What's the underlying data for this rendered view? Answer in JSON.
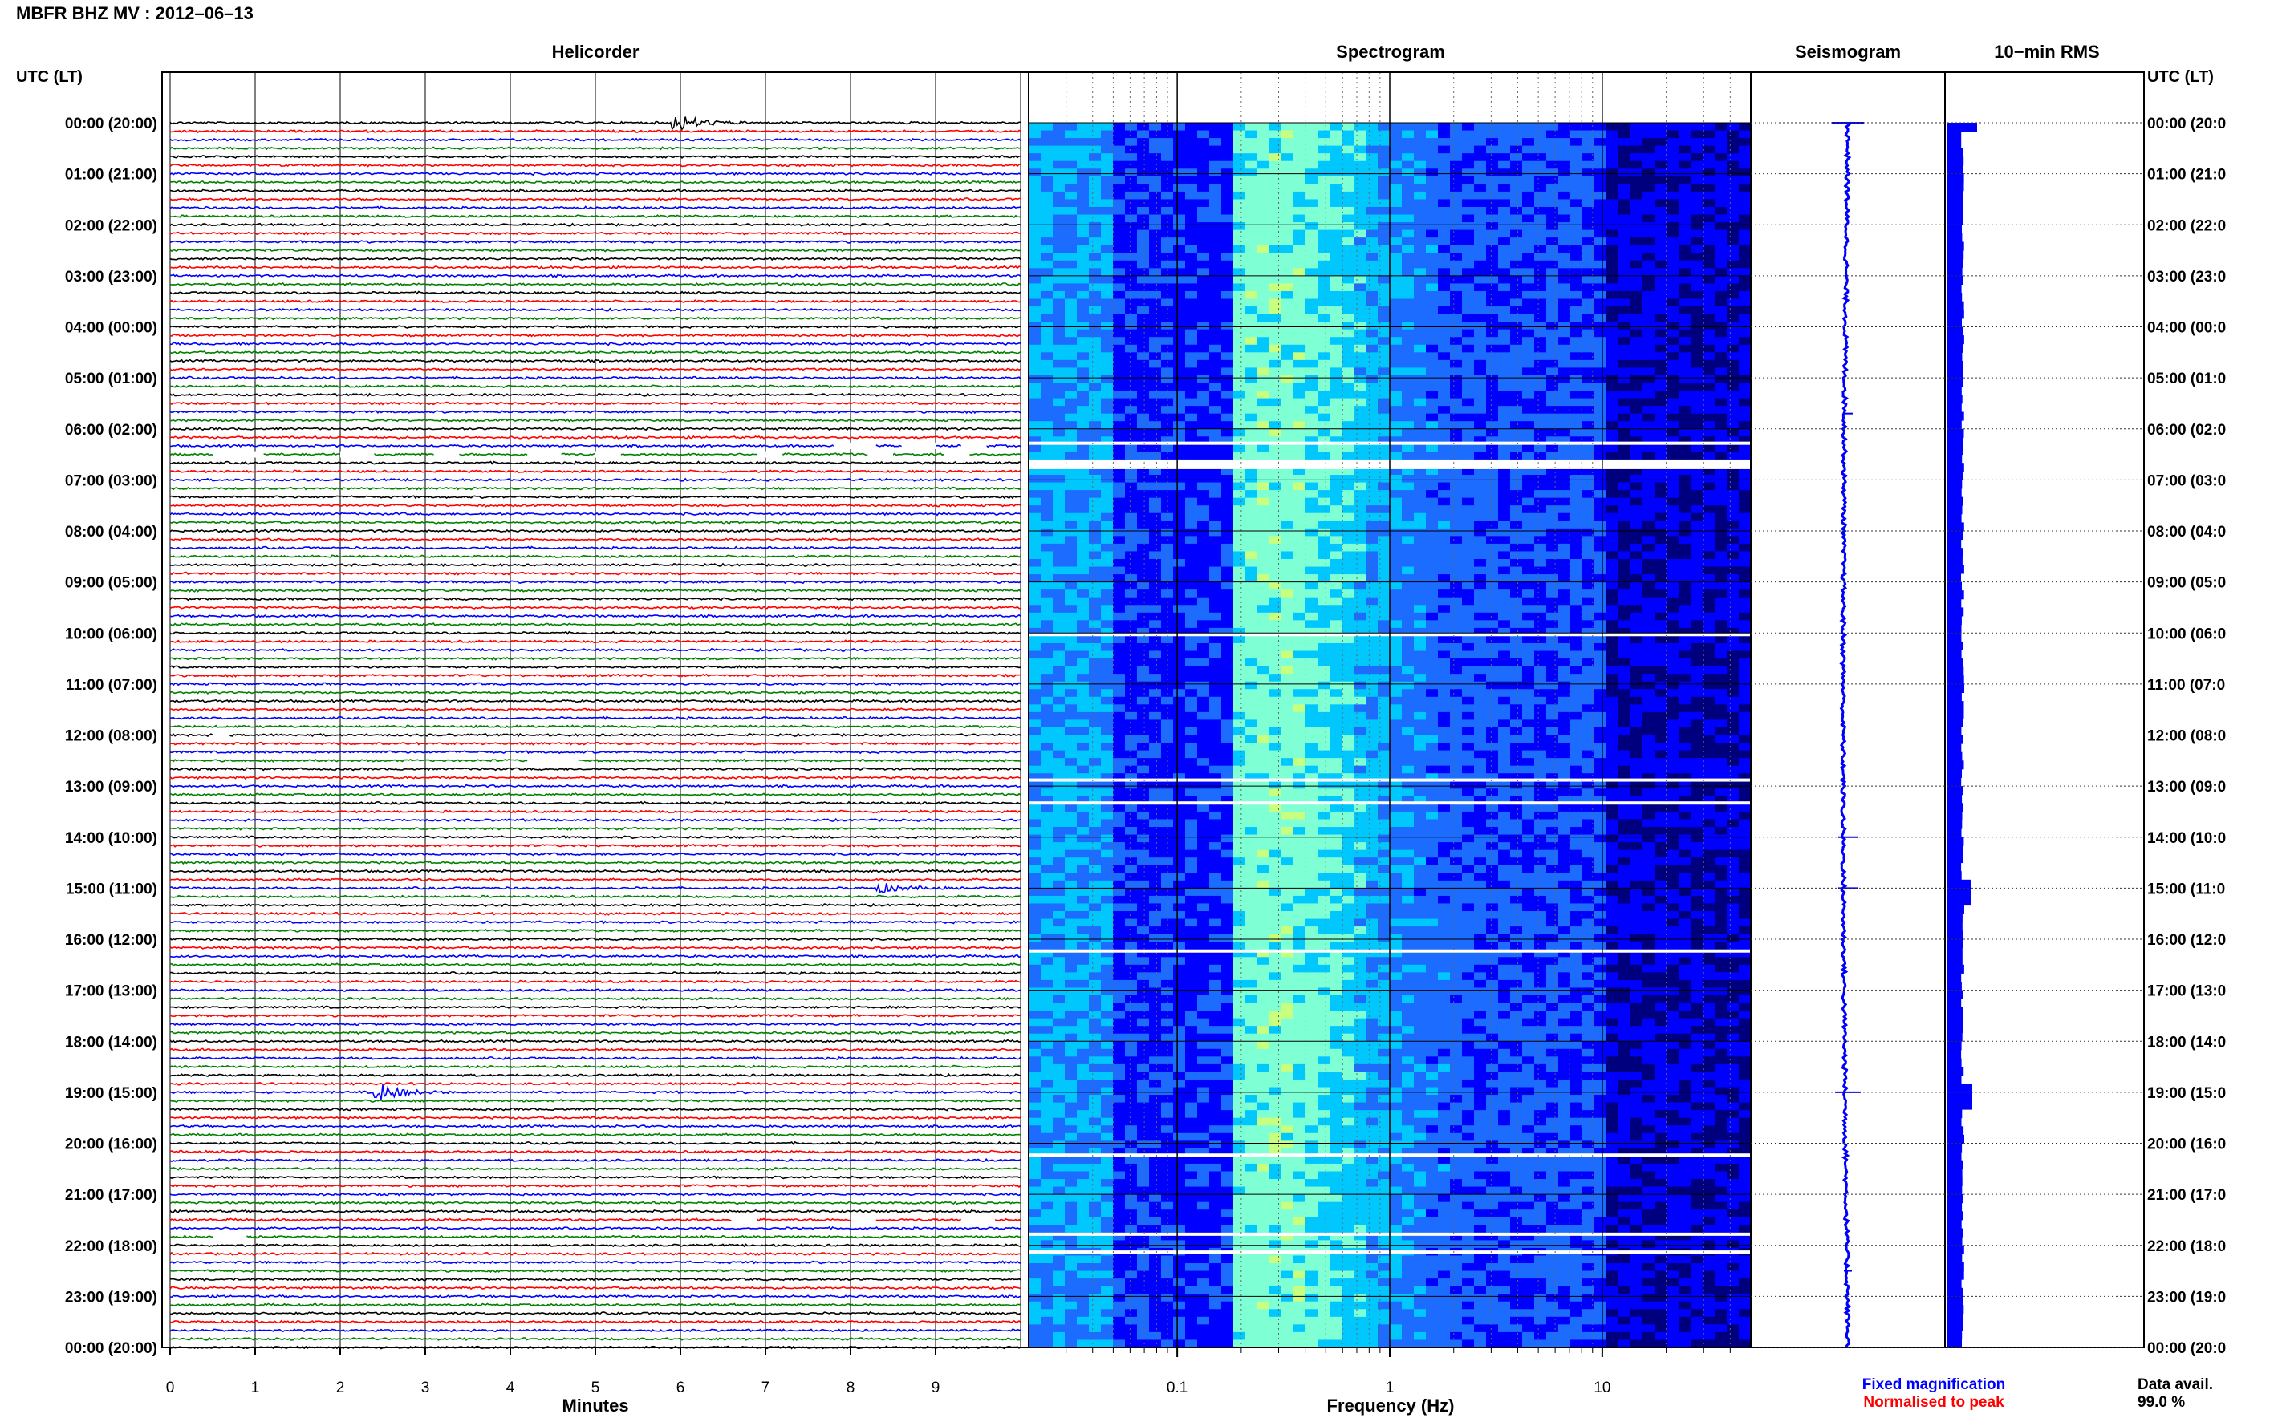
{
  "page": {
    "title": "MBFR BHZ MV : 2012–06–13",
    "utc_header_left": "UTC (LT)",
    "utc_header_right": "UTC (LT)"
  },
  "panels": {
    "helicorder": "Helicorder",
    "spectrogram": "Spectrogram",
    "seismogram": "Seismogram",
    "rms": "10−min RMS"
  },
  "time_labels_left": [
    "00:00 (20:00)",
    "01:00 (21:00)",
    "02:00 (22:00)",
    "03:00 (23:00)",
    "04:00 (00:00)",
    "05:00 (01:00)",
    "06:00 (02:00)",
    "07:00 (03:00)",
    "08:00 (04:00)",
    "09:00 (05:00)",
    "10:00 (06:00)",
    "11:00 (07:00)",
    "12:00 (08:00)",
    "13:00 (09:00)",
    "14:00 (10:00)",
    "15:00 (11:00)",
    "16:00 (12:00)",
    "17:00 (13:00)",
    "18:00 (14:00)",
    "19:00 (15:00)",
    "20:00 (16:00)",
    "21:00 (17:00)",
    "22:00 (18:00)",
    "23:00 (19:00)",
    "00:00 (20:00)"
  ],
  "time_labels_right": [
    "00:00 (20:0",
    "01:00 (21:0",
    "02:00 (22:0",
    "03:00 (23:0",
    "04:00 (00:0",
    "05:00 (01:0",
    "06:00 (02:0",
    "07:00 (03:0",
    "08:00 (04:0",
    "09:00 (05:0",
    "10:00 (06:0",
    "11:00 (07:0",
    "12:00 (08:0",
    "13:00 (09:0",
    "14:00 (10:0",
    "15:00 (11:0",
    "16:00 (12:0",
    "17:00 (13:0",
    "18:00 (14:0",
    "19:00 (15:0",
    "20:00 (16:0",
    "21:00 (17:0",
    "22:00 (18:0",
    "23:00 (19:0",
    "00:00 (20:0"
  ],
  "legend": {
    "fixed": "Fixed magnification",
    "normalised": "Normalised to peak",
    "fixed_color": "#0000ff",
    "normalised_color": "#ff0000"
  },
  "data_avail": {
    "label": "Data avail.",
    "value": "99.0 %"
  },
  "chart_data": [
    {
      "type": "line",
      "name": "helicorder",
      "title": "Helicorder",
      "xlabel": "Minutes",
      "x_ticks": [
        "0",
        "1",
        "2",
        "3",
        "4",
        "5",
        "6",
        "7",
        "8",
        "9"
      ],
      "xlim": [
        0,
        10
      ],
      "trace_interval_minutes": 10,
      "trace_colors": [
        "#000000",
        "#ff0000",
        "#0000ff",
        "#008000"
      ],
      "events": [
        {
          "hour": 0.0,
          "minute": 6.0,
          "amplitude": "large"
        },
        {
          "hour": 15.0,
          "minute": 8.4,
          "amplitude": "medium"
        },
        {
          "hour": 19.0,
          "minute": 2.5,
          "amplitude": "large"
        }
      ]
    },
    {
      "type": "heatmap",
      "name": "spectrogram",
      "title": "Spectrogram",
      "xlabel": "Frequency (Hz)",
      "x_scale": "log",
      "x_ticks": [
        "0.1",
        "1",
        "10"
      ],
      "xlim": [
        0.02,
        50
      ],
      "peak_frequency_hz": 0.3,
      "colormap": [
        "#00007f",
        "#0000ff",
        "#1c6cff",
        "#00c8ff",
        "#7fffd4",
        "#c8ff7f"
      ]
    },
    {
      "type": "line",
      "name": "seismogram",
      "title": "Seismogram"
    },
    {
      "type": "bar",
      "name": "rms",
      "title": "10−min RMS",
      "color": "#0000ff"
    }
  ]
}
